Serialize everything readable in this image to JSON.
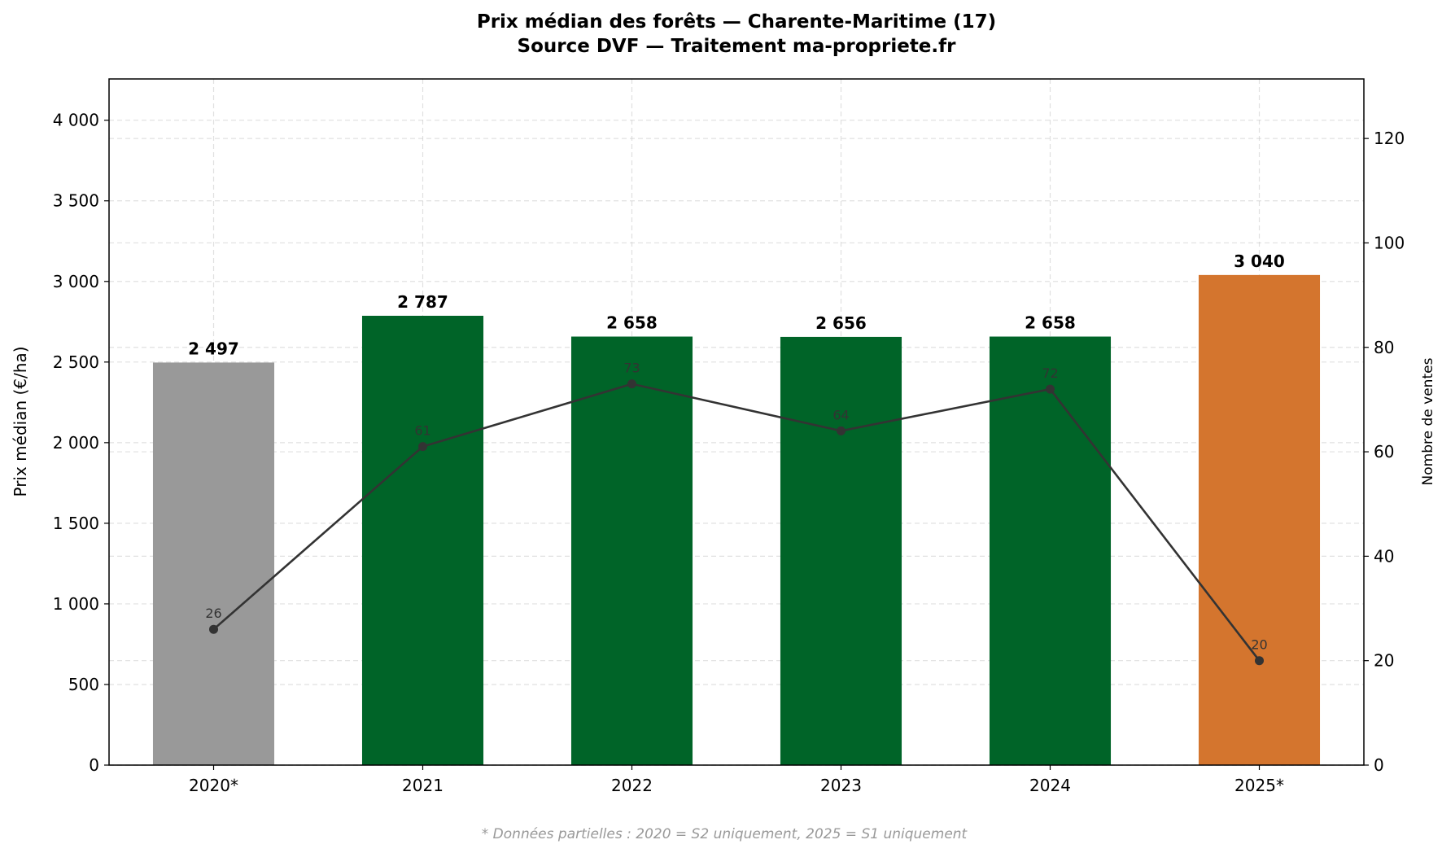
{
  "chart_data": {
    "type": "bar",
    "title": "Prix médian des forêts — Charente-Maritime (17)",
    "subtitle": "Source DVF — Traitement ma-propriete.fr",
    "categories": [
      "2020*",
      "2021",
      "2022",
      "2023",
      "2024",
      "2025*"
    ],
    "ylabel": "Prix médian (€/ha)",
    "y2label": "Nombre de ventes",
    "ylim": [
      0,
      4256
    ],
    "y2lim": [
      0,
      131.4
    ],
    "yticks": [
      "0",
      "500",
      "1 000",
      "1 500",
      "2 000",
      "2 500",
      "3 000",
      "3 500",
      "4 000"
    ],
    "y2ticks": [
      "0",
      "20",
      "40",
      "60",
      "80",
      "100",
      "120"
    ],
    "grid": true,
    "series": [
      {
        "type": "bar",
        "values": [
          2497,
          2787,
          2658,
          2656,
          2658,
          3040
        ],
        "labels": [
          "2 497",
          "2 787",
          "2 658",
          "2 656",
          "2 658",
          "3 040"
        ],
        "colors": [
          "#999999",
          "#006428",
          "#006428",
          "#006428",
          "#006428",
          "#d4752e"
        ]
      },
      {
        "type": "line",
        "axis": "right",
        "values": [
          26,
          61,
          73,
          64,
          72,
          20
        ],
        "labels": [
          "26",
          "61",
          "73",
          "64",
          "72",
          "20"
        ],
        "color": "#333333"
      }
    ],
    "footnote": "* Données partielles : 2020 = S2 uniquement, 2025 = S1 uniquement"
  }
}
